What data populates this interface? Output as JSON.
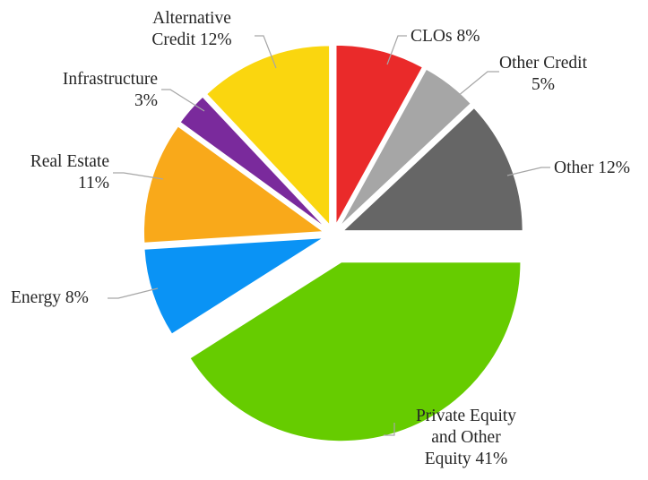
{
  "chart_data": {
    "type": "pie",
    "title": "",
    "unit": "%",
    "slices": [
      {
        "label": "CLOs",
        "value": 8,
        "color": "#ea2a2a",
        "label_lines": [
          "CLOs 8%"
        ]
      },
      {
        "label": "Other Credit",
        "value": 5,
        "color": "#a6a6a6",
        "label_lines": [
          "Other Credit",
          "5%"
        ]
      },
      {
        "label": "Other",
        "value": 12,
        "color": "#666666",
        "label_lines": [
          "Other 12%"
        ]
      },
      {
        "label": "Private Equity and Other Equity",
        "value": 41,
        "color": "#66cc00",
        "label_lines": [
          "Private Equity",
          "and Other",
          "Equity 41%"
        ]
      },
      {
        "label": "Energy",
        "value": 8,
        "color": "#0a93f5",
        "label_lines": [
          "Energy 8%"
        ]
      },
      {
        "label": "Real Estate",
        "value": 11,
        "color": "#f9a91a",
        "label_lines": [
          "Real Estate",
          "11%"
        ]
      },
      {
        "label": "Infrastructure",
        "value": 3,
        "color": "#7a2a9c",
        "label_lines": [
          "Infrastructure",
          "3%"
        ]
      },
      {
        "label": "Alternative Credit",
        "value": 12,
        "color": "#fad60f",
        "label_lines": [
          "Alternative",
          "Credit 12%"
        ]
      }
    ],
    "legend": "none",
    "label_position": "outside with leader lines",
    "exploded": true
  }
}
